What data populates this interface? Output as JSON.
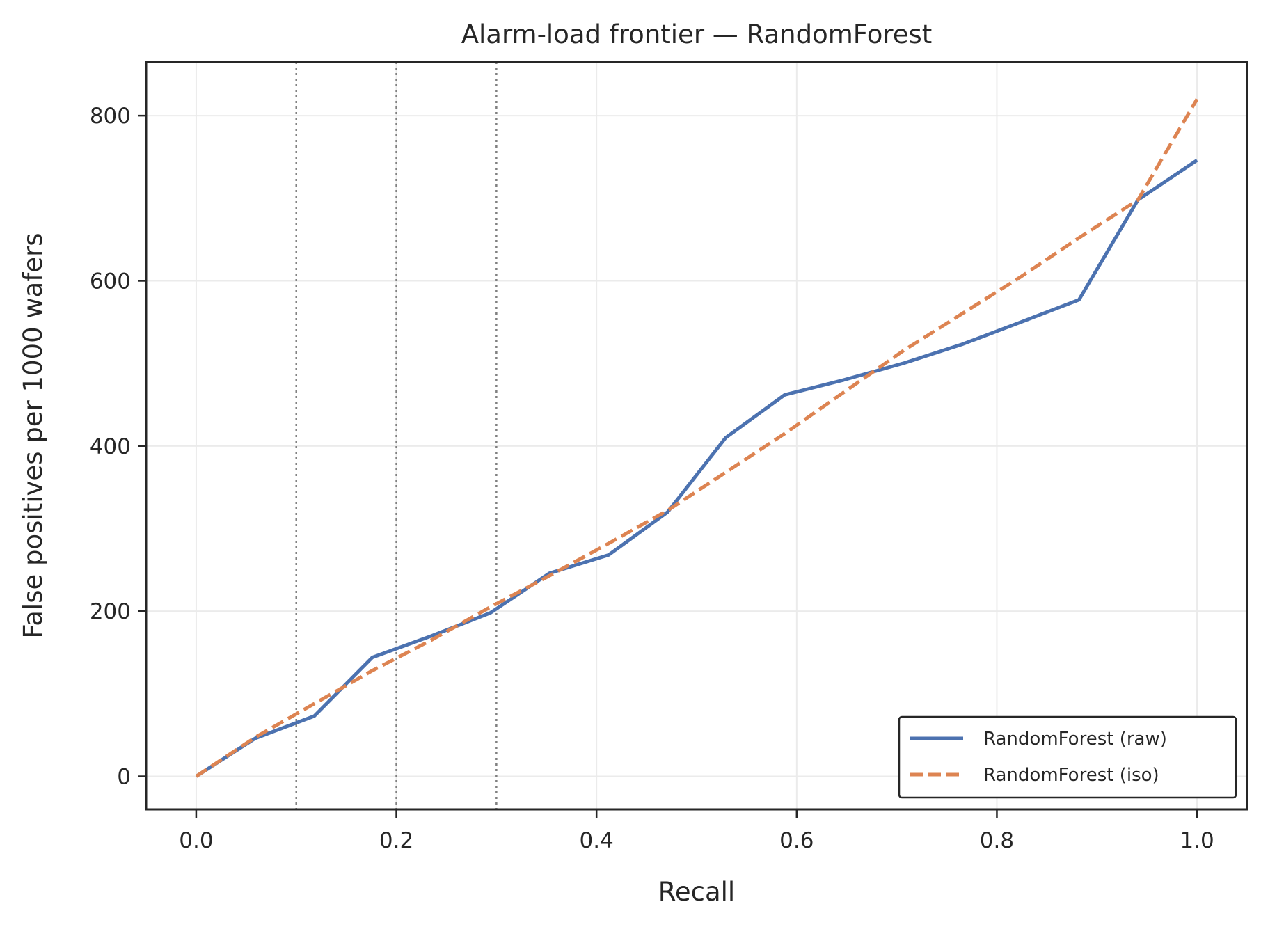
{
  "chart_data": {
    "type": "line",
    "title": "Alarm-load frontier — RandomForest",
    "xlabel": "Recall",
    "ylabel": "False positives per 1000 wafers",
    "xlim": [
      -0.05,
      1.05
    ],
    "ylim": [
      -40,
      865
    ],
    "xticks": [
      0.0,
      0.2,
      0.4,
      0.6,
      0.8,
      1.0
    ],
    "xtick_labels": [
      "0.0",
      "0.2",
      "0.4",
      "0.6",
      "0.8",
      "1.0"
    ],
    "yticks": [
      0,
      200,
      400,
      600,
      800
    ],
    "ytick_labels": [
      "0",
      "200",
      "400",
      "600",
      "800"
    ],
    "grid": true,
    "legend_position": "lower right",
    "vlines": [
      0.1,
      0.2,
      0.3
    ],
    "vline_color": "#808080",
    "series": [
      {
        "name": "RandomForest (raw)",
        "color": "#4c72b0",
        "style": "solid",
        "x": [
          0.0,
          0.059,
          0.118,
          0.176,
          0.235,
          0.294,
          0.353,
          0.412,
          0.471,
          0.529,
          0.588,
          0.647,
          0.706,
          0.765,
          0.824,
          0.882,
          0.941,
          1.0
        ],
        "y": [
          0,
          46,
          73,
          144,
          170,
          198,
          246,
          268,
          320,
          410,
          462,
          480,
          500,
          523,
          550,
          577,
          698,
          746
        ]
      },
      {
        "name": "RandomForest (iso)",
        "color": "#dd8452",
        "style": "dashed",
        "x": [
          0.0,
          0.06,
          0.118,
          0.176,
          0.235,
          0.294,
          0.353,
          0.412,
          0.471,
          0.529,
          0.588,
          0.647,
          0.706,
          0.765,
          0.824,
          0.882,
          0.941,
          1.0
        ],
        "y": [
          0,
          48,
          88,
          128,
          165,
          205,
          243,
          282,
          322,
          368,
          415,
          465,
          515,
          560,
          605,
          652,
          698,
          820
        ]
      }
    ]
  }
}
